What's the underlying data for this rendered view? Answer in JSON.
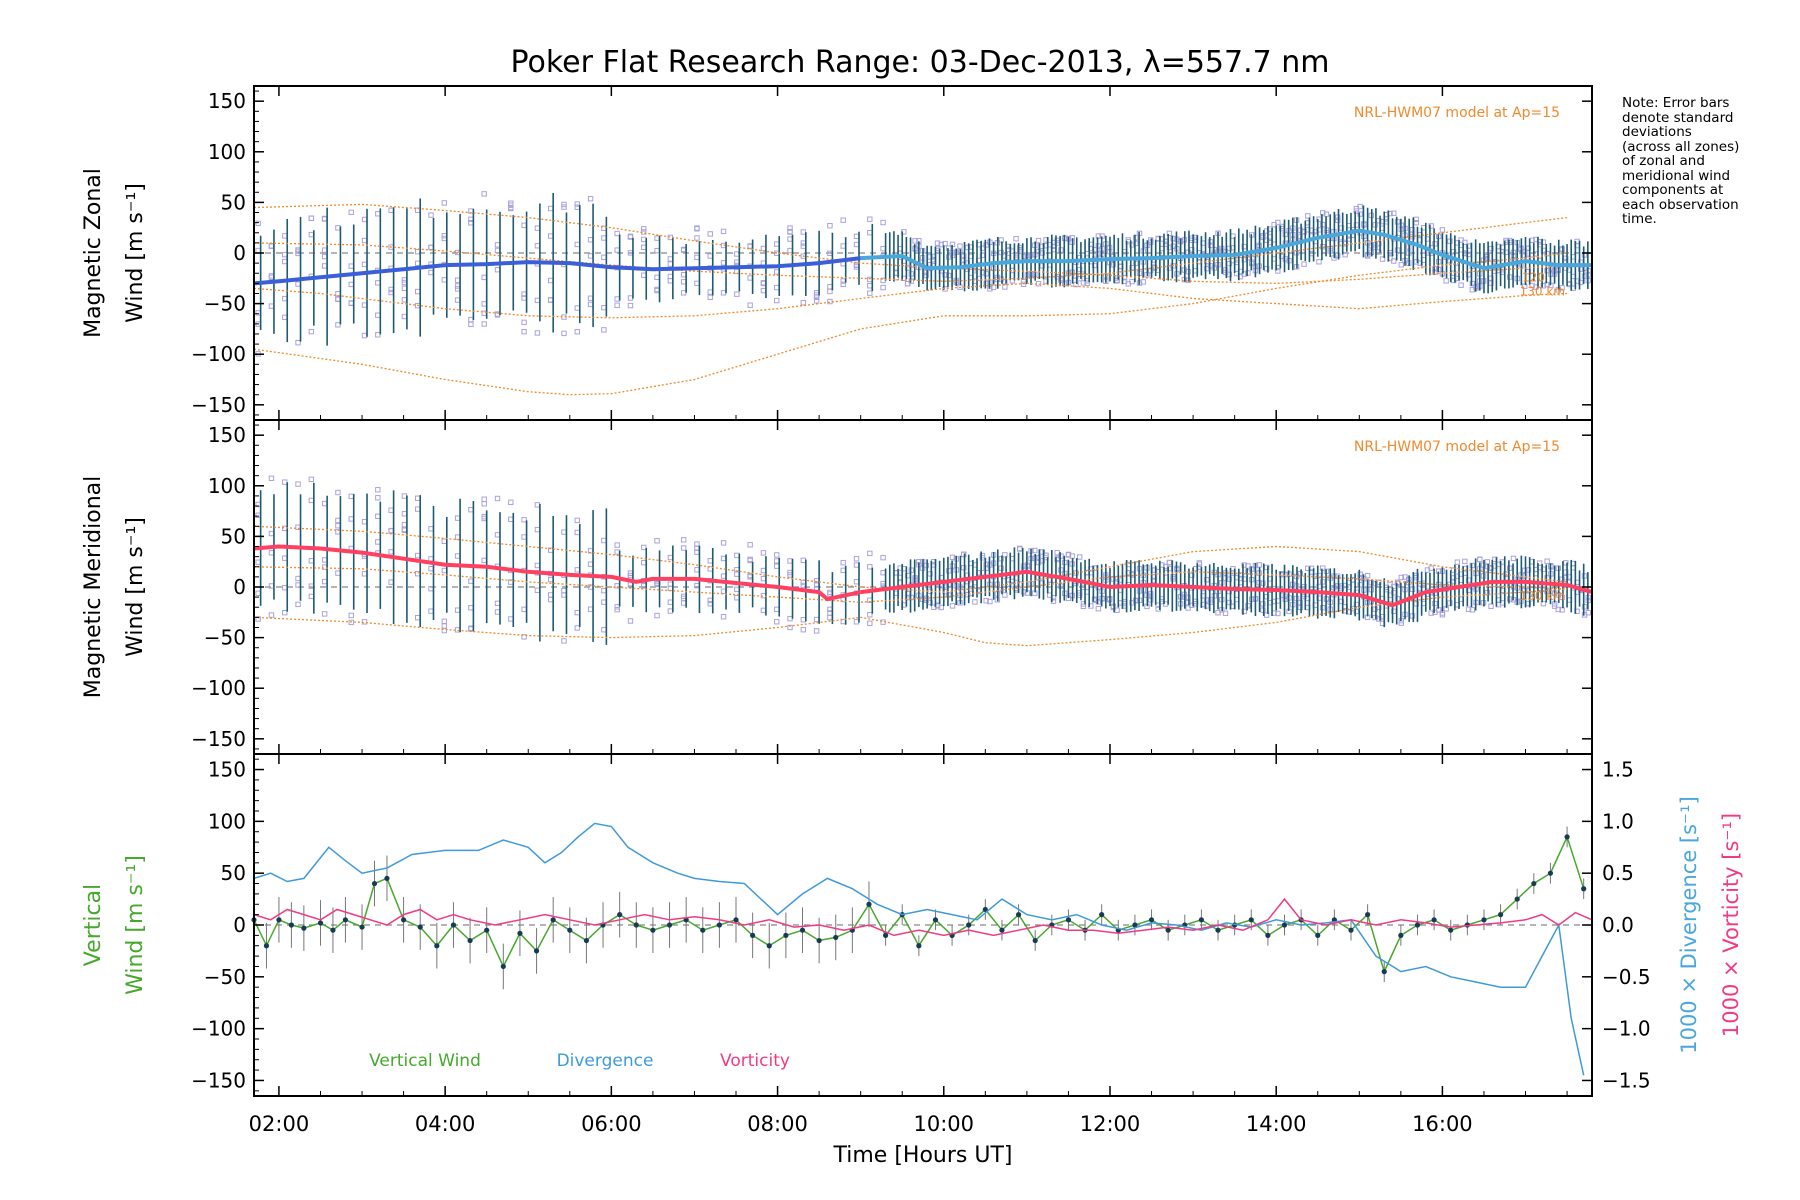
{
  "chart_data": {
    "type": "line",
    "title": "Poker Flat Research Range: 03-Dec-2013, λ=557.7 nm",
    "xlabel": "Time [Hours UT]",
    "x_ticks": [
      "02:00",
      "04:00",
      "06:00",
      "08:00",
      "10:00",
      "12:00",
      "14:00",
      "16:00"
    ],
    "x_tick_values": [
      2,
      4,
      6,
      8,
      10,
      12,
      14,
      16
    ],
    "xlim": [
      1.7,
      17.8
    ],
    "note_lines": [
      "Note: Error bars",
      "denote standard",
      "deviations",
      "(across all zones)",
      "of zonal and",
      "meridional wind",
      "components at",
      "each observation",
      "time."
    ],
    "panels": [
      {
        "id": "zonal",
        "ylabel_line1": "Magnetic Zonal",
        "ylabel_line2": "Wind [m s⁻¹]",
        "ylim": [
          -165,
          165
        ],
        "y_ticks": [
          -150,
          -100,
          -50,
          0,
          50,
          100,
          150
        ],
        "model_label": "NRL-HWM07 model at Ap=15",
        "model_alt_label": "130 km",
        "model_alt_label_2": "120",
        "mean_color": "#3a5fd9",
        "late_color": "#4aa7dc",
        "mean_series": {
          "x": [
            1.7,
            2.0,
            2.5,
            3.0,
            3.5,
            4.0,
            4.5,
            5.0,
            5.5,
            6.0,
            6.5,
            7.0,
            7.5,
            8.0,
            8.5,
            9.0,
            9.5,
            9.8,
            10.2,
            10.6,
            11.0,
            11.5,
            12.0,
            12.5,
            13.0,
            13.5,
            14.0,
            14.5,
            15.0,
            15.3,
            15.7,
            16.0,
            16.5,
            17.0,
            17.4,
            17.8
          ],
          "y": [
            -30,
            -28,
            -24,
            -20,
            -16,
            -12,
            -11,
            -9,
            -10,
            -14,
            -16,
            -15,
            -14,
            -13,
            -10,
            -5,
            -3,
            -15,
            -14,
            -10,
            -8,
            -8,
            -6,
            -5,
            -3,
            -2,
            5,
            15,
            22,
            18,
            8,
            -2,
            -15,
            -8,
            -12,
            -12
          ]
        },
        "model_curves": [
          {
            "x": [
              1.7,
              3,
              4,
              5,
              5.5,
              6,
              7,
              8,
              9,
              10,
              11,
              12,
              13,
              14,
              15,
              16,
              17,
              17.5
            ],
            "y": [
              -95,
              -110,
              -125,
              -137,
              -140,
              -139,
              -125,
              -100,
              -75,
              -62,
              -62,
              -60,
              -50,
              -35,
              -22,
              -12,
              -5,
              0
            ]
          },
          {
            "x": [
              1.7,
              2.5,
              4,
              5,
              6,
              7,
              8,
              9,
              10,
              11,
              12,
              13,
              14,
              15,
              16,
              17,
              17.5
            ],
            "y": [
              -35,
              -40,
              -55,
              -62,
              -64,
              -62,
              -55,
              -45,
              -35,
              -30,
              -35,
              -45,
              -50,
              -55,
              -48,
              -42,
              -40
            ]
          },
          {
            "x": [
              1.7,
              3,
              4,
              5,
              6,
              7,
              8,
              9,
              10,
              11,
              12,
              13,
              14,
              15,
              16,
              17,
              17.5
            ],
            "y": [
              45,
              48,
              42,
              35,
              25,
              12,
              0,
              -10,
              -15,
              -18,
              -22,
              -28,
              -30,
              -26,
              -20,
              -15,
              -12
            ]
          },
          {
            "x": [
              1.7,
              3,
              4,
              5,
              6,
              7,
              8,
              9,
              10,
              11,
              12,
              13,
              14,
              15,
              16,
              17,
              17.5
            ],
            "y": [
              10,
              8,
              2,
              -5,
              -12,
              -18,
              -22,
              -25,
              -28,
              -25,
              -20,
              -10,
              0,
              10,
              20,
              30,
              35
            ]
          }
        ]
      },
      {
        "id": "meridional",
        "ylabel_line1": "Magnetic Meridional",
        "ylabel_line2": "Wind [m s⁻¹]",
        "ylim": [
          -165,
          165
        ],
        "y_ticks": [
          -150,
          -100,
          -50,
          0,
          50,
          100,
          150
        ],
        "model_label": "NRL-HWM07 model at Ap=15",
        "model_alt_label": "130 km",
        "mean_color": "#ff4060",
        "late_color": "#ff4060",
        "mean_series": {
          "x": [
            1.7,
            2.0,
            2.5,
            3.0,
            3.5,
            4.0,
            4.5,
            5.0,
            5.5,
            6.0,
            6.3,
            6.5,
            7.0,
            7.5,
            8.0,
            8.5,
            8.6,
            9.0,
            9.5,
            10.0,
            10.5,
            11.0,
            11.5,
            12.0,
            12.5,
            13.0,
            13.5,
            14.0,
            14.5,
            15.0,
            15.4,
            15.8,
            16.2,
            16.6,
            17.0,
            17.5,
            17.8
          ],
          "y": [
            38,
            40,
            38,
            34,
            28,
            22,
            20,
            15,
            12,
            10,
            5,
            8,
            8,
            4,
            0,
            -5,
            -12,
            -5,
            0,
            5,
            10,
            15,
            8,
            0,
            2,
            0,
            -2,
            -3,
            -5,
            -8,
            -18,
            -5,
            0,
            5,
            5,
            2,
            -5
          ]
        },
        "model_curves": [
          {
            "x": [
              1.7,
              3,
              4,
              5,
              6,
              7,
              8,
              9,
              10,
              10.5,
              11,
              12,
              13,
              14,
              15,
              16,
              17,
              17.5
            ],
            "y": [
              -30,
              -35,
              -42,
              -48,
              -50,
              -48,
              -40,
              -30,
              -45,
              -55,
              -58,
              -52,
              -45,
              -35,
              -20,
              -10,
              -5,
              -2
            ]
          },
          {
            "x": [
              1.7,
              3,
              4,
              5,
              6,
              7,
              8,
              9,
              10,
              11,
              12,
              13,
              14,
              15,
              16,
              17,
              17.5
            ],
            "y": [
              60,
              55,
              48,
              40,
              32,
              22,
              10,
              0,
              -5,
              5,
              20,
              35,
              40,
              35,
              20,
              10,
              5
            ]
          },
          {
            "x": [
              1.7,
              3,
              4,
              5,
              6,
              7,
              8,
              9,
              10,
              11,
              12,
              13,
              14,
              15,
              16,
              17,
              17.5
            ],
            "y": [
              20,
              18,
              12,
              5,
              0,
              -5,
              -10,
              -15,
              -10,
              0,
              10,
              15,
              12,
              8,
              2,
              0,
              -2
            ]
          }
        ]
      },
      {
        "id": "vertical",
        "ylabel_line1": "Vertical",
        "ylabel_line2": "Wind [m s⁻¹]",
        "ylim": [
          -165,
          165
        ],
        "y_ticks": [
          -150,
          -100,
          -50,
          0,
          50,
          100,
          150
        ],
        "right_ylim": [
          -1.65,
          1.65
        ],
        "right_ticks": [
          -1.5,
          -1.0,
          -0.5,
          0.0,
          0.5,
          1.0,
          1.5
        ],
        "right_tick_labels": [
          "−1.5",
          "−1.0",
          "−0.5",
          "0.0",
          "0.5",
          "1.0",
          "1.5"
        ],
        "right_label_div": "1000 × Divergence [s⁻¹]",
        "right_label_vort": "1000 × Vorticity [s⁻¹]",
        "legend": [
          {
            "label": "Vertical Wind",
            "color": "#46a82c"
          },
          {
            "label": "Divergence",
            "color": "#3f9ad9"
          },
          {
            "label": "Vorticity",
            "color": "#f03a86"
          }
        ],
        "series": [
          {
            "name": "Vertical Wind",
            "axis": "left",
            "color": "#46a82c",
            "x": [
              1.7,
              1.85,
              2.0,
              2.15,
              2.3,
              2.5,
              2.65,
              2.8,
              3.0,
              3.15,
              3.3,
              3.5,
              3.7,
              3.9,
              4.1,
              4.3,
              4.5,
              4.7,
              4.9,
              5.1,
              5.3,
              5.5,
              5.7,
              5.9,
              6.1,
              6.3,
              6.5,
              6.7,
              6.9,
              7.1,
              7.3,
              7.5,
              7.7,
              7.9,
              8.1,
              8.3,
              8.5,
              8.7,
              8.9,
              9.1,
              9.3,
              9.5,
              9.7,
              9.9,
              10.1,
              10.3,
              10.5,
              10.7,
              10.9,
              11.1,
              11.3,
              11.5,
              11.7,
              11.9,
              12.1,
              12.3,
              12.5,
              12.7,
              12.9,
              13.1,
              13.3,
              13.5,
              13.7,
              13.9,
              14.1,
              14.3,
              14.5,
              14.7,
              14.9,
              15.1,
              15.3,
              15.5,
              15.7,
              15.9,
              16.1,
              16.3,
              16.5,
              16.7,
              16.9,
              17.1,
              17.3,
              17.5,
              17.7
            ],
            "y": [
              5,
              -20,
              5,
              0,
              -3,
              2,
              -5,
              5,
              -2,
              40,
              45,
              5,
              -2,
              -20,
              0,
              -15,
              -5,
              -40,
              -8,
              -25,
              5,
              -5,
              -15,
              0,
              10,
              0,
              -5,
              0,
              5,
              -5,
              0,
              5,
              -10,
              -20,
              -10,
              -5,
              -15,
              -12,
              -5,
              20,
              -10,
              10,
              -20,
              5,
              -10,
              0,
              15,
              -5,
              10,
              -15,
              0,
              5,
              -5,
              10,
              -5,
              0,
              5,
              -5,
              0,
              5,
              -5,
              0,
              5,
              -10,
              0,
              5,
              -10,
              5,
              -5,
              10,
              -45,
              -10,
              0,
              5,
              -5,
              0,
              5,
              10,
              25,
              40,
              50,
              85,
              35
            ]
          },
          {
            "name": "Divergence",
            "axis": "right",
            "color": "#3f9ad9",
            "x": [
              1.7,
              1.9,
              2.1,
              2.3,
              2.6,
              2.8,
              3.0,
              3.3,
              3.6,
              4.0,
              4.4,
              4.7,
              5.0,
              5.2,
              5.4,
              5.6,
              5.8,
              6.0,
              6.2,
              6.5,
              6.8,
              7.0,
              7.3,
              7.6,
              8.0,
              8.3,
              8.6,
              8.9,
              9.2,
              9.5,
              9.8,
              10.1,
              10.4,
              10.7,
              11.0,
              11.3,
              11.6,
              11.9,
              12.2,
              12.5,
              12.8,
              13.1,
              13.4,
              13.7,
              14.0,
              14.3,
              14.6,
              14.9,
              15.2,
              15.5,
              15.8,
              16.1,
              16.4,
              16.7,
              17.0,
              17.2,
              17.4,
              17.55,
              17.7
            ],
            "y": [
              0.45,
              0.5,
              0.42,
              0.45,
              0.75,
              0.62,
              0.5,
              0.55,
              0.68,
              0.72,
              0.72,
              0.82,
              0.75,
              0.6,
              0.7,
              0.85,
              0.98,
              0.95,
              0.75,
              0.6,
              0.5,
              0.45,
              0.42,
              0.4,
              0.1,
              0.3,
              0.45,
              0.35,
              0.2,
              0.1,
              0.15,
              0.1,
              0.05,
              0.25,
              0.1,
              0.05,
              0.1,
              0.0,
              -0.05,
              0.02,
              0.0,
              -0.05,
              0.02,
              -0.02,
              0.05,
              0.0,
              0.02,
              0.05,
              -0.3,
              -0.45,
              -0.4,
              -0.5,
              -0.55,
              -0.6,
              -0.6,
              -0.3,
              0.0,
              -0.9,
              -1.45
            ]
          },
          {
            "name": "Vorticity",
            "axis": "right",
            "color": "#f03a86",
            "x": [
              1.7,
              1.9,
              2.1,
              2.3,
              2.5,
              2.7,
              2.9,
              3.1,
              3.3,
              3.5,
              3.7,
              3.9,
              4.1,
              4.3,
              4.6,
              4.9,
              5.2,
              5.5,
              5.8,
              6.1,
              6.4,
              6.7,
              7.0,
              7.3,
              7.6,
              7.9,
              8.2,
              8.5,
              8.8,
              9.1,
              9.4,
              9.7,
              10.0,
              10.3,
              10.6,
              10.9,
              11.2,
              11.5,
              11.8,
              12.1,
              12.4,
              12.7,
              13.0,
              13.3,
              13.6,
              13.9,
              14.1,
              14.3,
              14.6,
              14.9,
              15.2,
              15.5,
              15.8,
              16.1,
              16.4,
              16.7,
              17.0,
              17.2,
              17.4,
              17.6,
              17.8
            ],
            "y": [
              0.1,
              0.05,
              0.15,
              0.1,
              0.05,
              0.15,
              0.1,
              0.05,
              0.0,
              0.1,
              0.15,
              0.05,
              0.1,
              0.05,
              0.0,
              0.05,
              0.1,
              0.05,
              0.0,
              0.05,
              0.1,
              0.05,
              0.08,
              0.05,
              0.0,
              0.05,
              -0.02,
              0.0,
              -0.05,
              0.0,
              -0.1,
              -0.05,
              -0.1,
              -0.05,
              -0.1,
              -0.05,
              0.0,
              -0.05,
              -0.05,
              -0.08,
              -0.05,
              -0.02,
              -0.05,
              0.0,
              -0.05,
              0.05,
              0.25,
              0.05,
              0.0,
              0.05,
              0.0,
              0.05,
              0.02,
              -0.02,
              0.0,
              0.02,
              0.05,
              0.1,
              0.0,
              0.12,
              0.05
            ]
          }
        ]
      }
    ]
  }
}
